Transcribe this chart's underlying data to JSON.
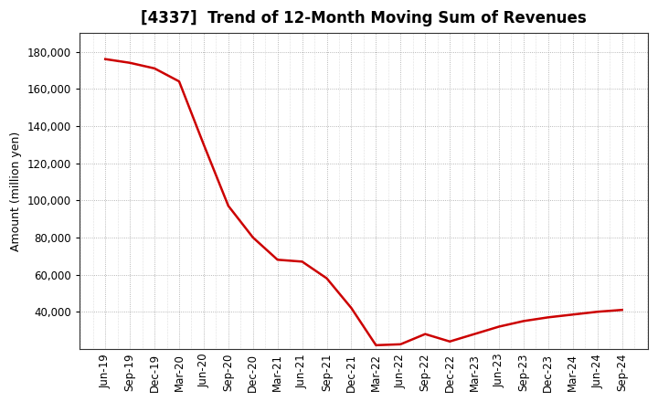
{
  "title": "[4337]  Trend of 12-Month Moving Sum of Revenues",
  "ylabel": "Amount (million yen)",
  "background_color": "#ffffff",
  "plot_background_color": "#ffffff",
  "line_color": "#cc0000",
  "line_width": 1.8,
  "grid_color": "#999999",
  "labels": [
    "Jun-19",
    "Sep-19",
    "Dec-19",
    "Mar-20",
    "Jun-20",
    "Sep-20",
    "Dec-20",
    "Mar-21",
    "Jun-21",
    "Sep-21",
    "Dec-21",
    "Mar-22",
    "Jun-22",
    "Sep-22",
    "Dec-22",
    "Mar-23",
    "Jun-23",
    "Sep-23",
    "Dec-23",
    "Mar-24",
    "Jun-24",
    "Sep-24"
  ],
  "values": [
    176000,
    174000,
    171000,
    164000,
    130000,
    97000,
    80000,
    68000,
    67000,
    58000,
    42000,
    22000,
    22500,
    28000,
    24000,
    28000,
    32000,
    35000,
    37000,
    38500,
    40000,
    41000
  ],
  "ylim": [
    20000,
    190000
  ],
  "yticks": [
    40000,
    60000,
    80000,
    100000,
    120000,
    140000,
    160000,
    180000
  ],
  "title_fontsize": 12,
  "label_fontsize": 9,
  "tick_fontsize": 8.5
}
